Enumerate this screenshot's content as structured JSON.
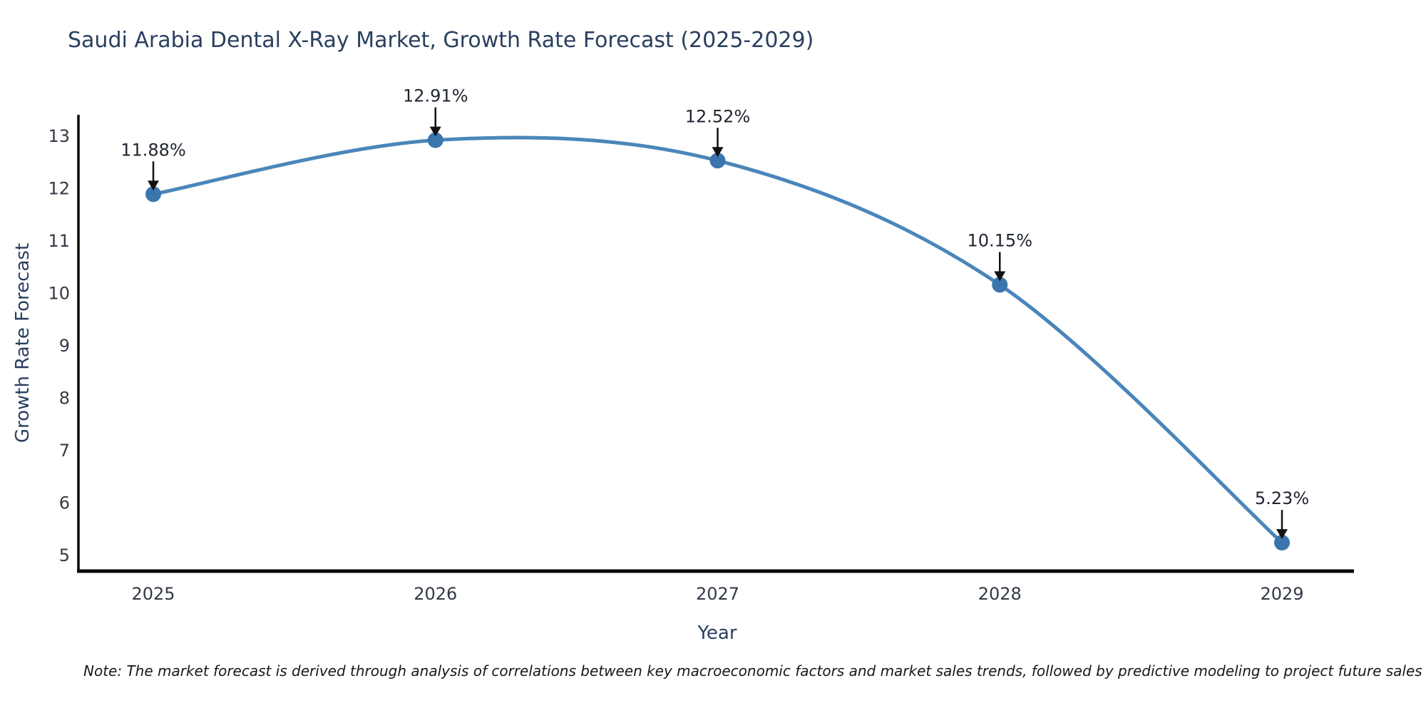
{
  "page": {
    "background": "#ffffff"
  },
  "chart_data": {
    "type": "line",
    "title": "Saudi Arabia Dental X-Ray Market, Growth Rate Forecast (2025-2029)",
    "xlabel": "Year",
    "ylabel": "Growth Rate Forecast",
    "x": [
      2025,
      2026,
      2027,
      2028,
      2029
    ],
    "series": [
      {
        "name": "Growth Rate Forecast (%)",
        "values": [
          11.88,
          12.91,
          12.52,
          10.15,
          5.23
        ]
      }
    ],
    "point_labels": [
      "11.88%",
      "12.91%",
      "12.52%",
      "10.15%",
      "5.23%"
    ],
    "y_ticks": [
      5,
      6,
      7,
      8,
      9,
      10,
      11,
      12,
      13
    ],
    "ylim": [
      4.7,
      13.4
    ],
    "grid": false,
    "legend": "none",
    "line_shape": "spline",
    "line_color": "#4a86ba",
    "marker_color": "#3a76ad",
    "annotation_arrow_color": "#111111",
    "axis_color": "#0a0a0a"
  },
  "note": {
    "text": "Note: The market forecast is derived through analysis of correlations between key macroeconomic factors and market sales trends, followed by predictive modeling to project future sales"
  }
}
